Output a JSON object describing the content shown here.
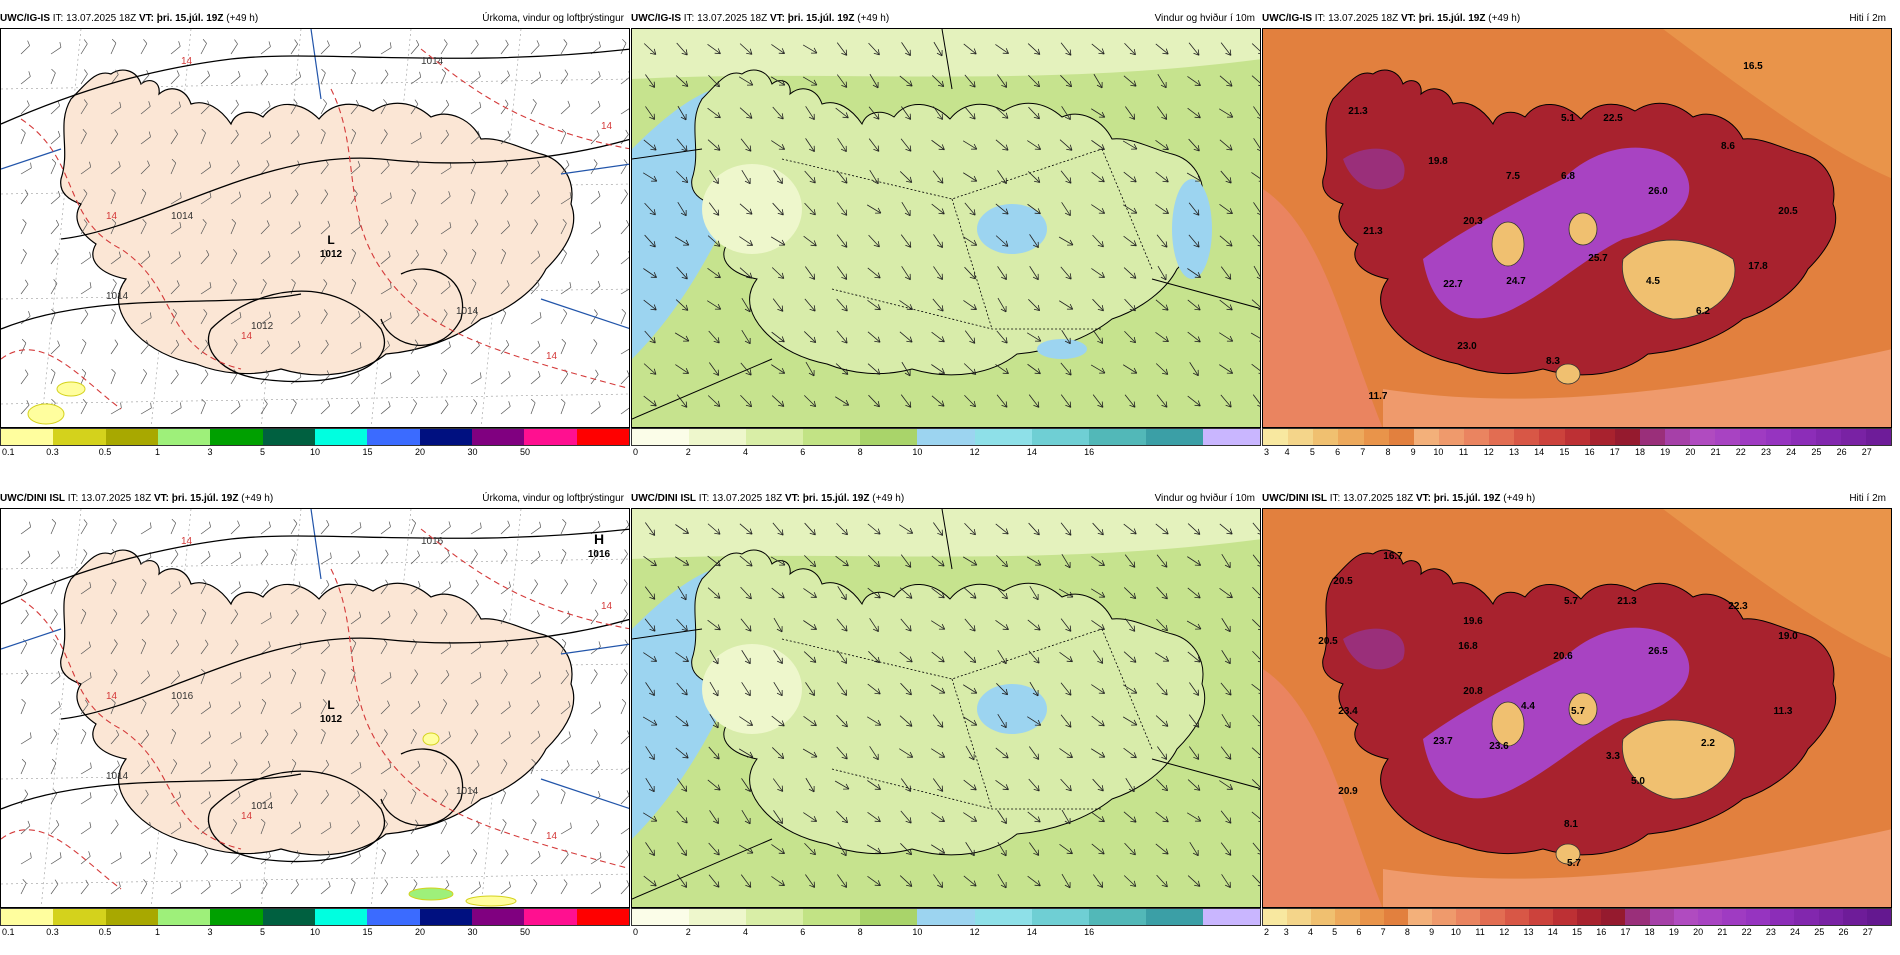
{
  "header": {
    "it_label": "IT:",
    "it_value": "13.07.2025 18Z",
    "vt_label": "VT:",
    "vt_value": "þri. 15.júl. 19Z",
    "lead": "(+49 h)"
  },
  "rows": [
    {
      "model": "UWC/IG-IS",
      "panels": [
        {
          "title": "Úrkoma, vindur og loftþrýstingur",
          "pressure_centers": [
            {
              "type": "L",
              "value": "1012"
            }
          ],
          "isobars": [
            "1014",
            "1014",
            "1012",
            "1014",
            "1014"
          ],
          "isotherm": "14",
          "colorbar": {
            "colors": [
              "#fffe9e",
              "#d4d21c",
              "#a8a800",
              "#9ef07a",
              "#00a000",
              "#006040",
              "#00ffe0",
              "#3b6bff",
              "#001080",
              "#800080",
              "#ff1090",
              "#ff0000"
            ],
            "ticks": [
              "0.1",
              "0.3",
              "0.5",
              "1",
              "3",
              "5",
              "10",
              "15",
              "20",
              "30",
              "50"
            ]
          }
        },
        {
          "title": "Vindur og hviður í 10m",
          "colorbar": {
            "colors": [
              "#fbfde8",
              "#eef7cc",
              "#d9eea7",
              "#c2e385",
              "#a9d46a",
              "#9cd4f0",
              "#8ee0e8",
              "#6fcfd4",
              "#52b8b8",
              "#3b9fa6",
              "#c9b6ff"
            ],
            "ticks": [
              "0",
              "2",
              "4",
              "6",
              "8",
              "10",
              "12",
              "14",
              "16"
            ]
          }
        },
        {
          "title": "Hiti í 2m",
          "temps": [
            "16.5",
            "21.3",
            "5.1",
            "22.5",
            "8.6",
            "19.8",
            "7.5",
            "6.8",
            "26.0",
            "20.5",
            "20.3",
            "21.3",
            "4.5",
            "25.7",
            "24.7",
            "22.7",
            "17.8",
            "6.2",
            "23.0",
            "8.3",
            "11.7"
          ],
          "colorbar": {
            "colors": [
              "#f8e8a0",
              "#f4d58a",
              "#f0c070",
              "#eda95c",
              "#e9944a",
              "#e2803e",
              "#f3b07a",
              "#ef9a6c",
              "#ea8460",
              "#e26d52",
              "#d85746",
              "#cc423c",
              "#bd3034",
              "#a8222e",
              "#951a2e",
              "#9a2f7a",
              "#a640a8",
              "#b04bc0",
              "#a843c2",
              "#9f3bc2",
              "#9634c0",
              "#8c2db8",
              "#8227ae",
              "#7922a4",
              "#6e1c99"
            ],
            "ticks": [
              "3",
              "4",
              "5",
              "6",
              "7",
              "8",
              "9",
              "10",
              "11",
              "12",
              "13",
              "14",
              "15",
              "16",
              "17",
              "18",
              "19",
              "20",
              "21",
              "22",
              "23",
              "24",
              "25",
              "26",
              "27"
            ]
          }
        }
      ]
    },
    {
      "model": "UWC/DINI ISL",
      "panels": [
        {
          "title": "Úrkoma, vindur og loftþrýstingur",
          "pressure_centers": [
            {
              "type": "L",
              "value": "1012"
            },
            {
              "type": "H",
              "value": "1016"
            }
          ],
          "isobars": [
            "1016",
            "1016",
            "1014",
            "1014",
            "1014"
          ],
          "isotherm": "14",
          "colorbar": {
            "colors": [
              "#fffe9e",
              "#d4d21c",
              "#a8a800",
              "#9ef07a",
              "#00a000",
              "#006040",
              "#00ffe0",
              "#3b6bff",
              "#001080",
              "#800080",
              "#ff1090",
              "#ff0000"
            ],
            "ticks": [
              "0.1",
              "0.3",
              "0.5",
              "1",
              "3",
              "5",
              "10",
              "15",
              "20",
              "30",
              "50"
            ]
          }
        },
        {
          "title": "Vindur og hviður í 10m",
          "colorbar": {
            "colors": [
              "#fbfde8",
              "#eef7cc",
              "#d9eea7",
              "#c2e385",
              "#a9d46a",
              "#9cd4f0",
              "#8ee0e8",
              "#6fcfd4",
              "#52b8b8",
              "#3b9fa6",
              "#c9b6ff"
            ],
            "ticks": [
              "0",
              "2",
              "4",
              "6",
              "8",
              "10",
              "12",
              "14",
              "16"
            ]
          }
        },
        {
          "title": "Hiti í 2m",
          "temps": [
            "16.7",
            "20.5",
            "5.7",
            "19.6",
            "21.3",
            "22.3",
            "20.5",
            "16.8",
            "20.6",
            "26.5",
            "19.0",
            "20.8",
            "4.4",
            "5.7",
            "11.3",
            "23.4",
            "23.7",
            "23.6",
            "3.3",
            "2.2",
            "5.0",
            "20.9",
            "8.1",
            "5.7"
          ],
          "colorbar": {
            "colors": [
              "#f8e8a0",
              "#f4d58a",
              "#f0c070",
              "#eda95c",
              "#e9944a",
              "#e2803e",
              "#f3b07a",
              "#ef9a6c",
              "#ea8460",
              "#e26d52",
              "#d85746",
              "#cc423c",
              "#bd3034",
              "#a8222e",
              "#951a2e",
              "#9a2f7a",
              "#a640a8",
              "#b04bc0",
              "#a843c2",
              "#9f3bc2",
              "#9634c0",
              "#8c2db8",
              "#8227ae",
              "#7922a4",
              "#6e1c99",
              "#641890"
            ],
            "ticks": [
              "2",
              "3",
              "4",
              "5",
              "6",
              "7",
              "8",
              "9",
              "10",
              "11",
              "12",
              "13",
              "14",
              "15",
              "16",
              "17",
              "18",
              "19",
              "20",
              "21",
              "22",
              "23",
              "24",
              "25",
              "26",
              "27"
            ]
          }
        }
      ]
    }
  ]
}
